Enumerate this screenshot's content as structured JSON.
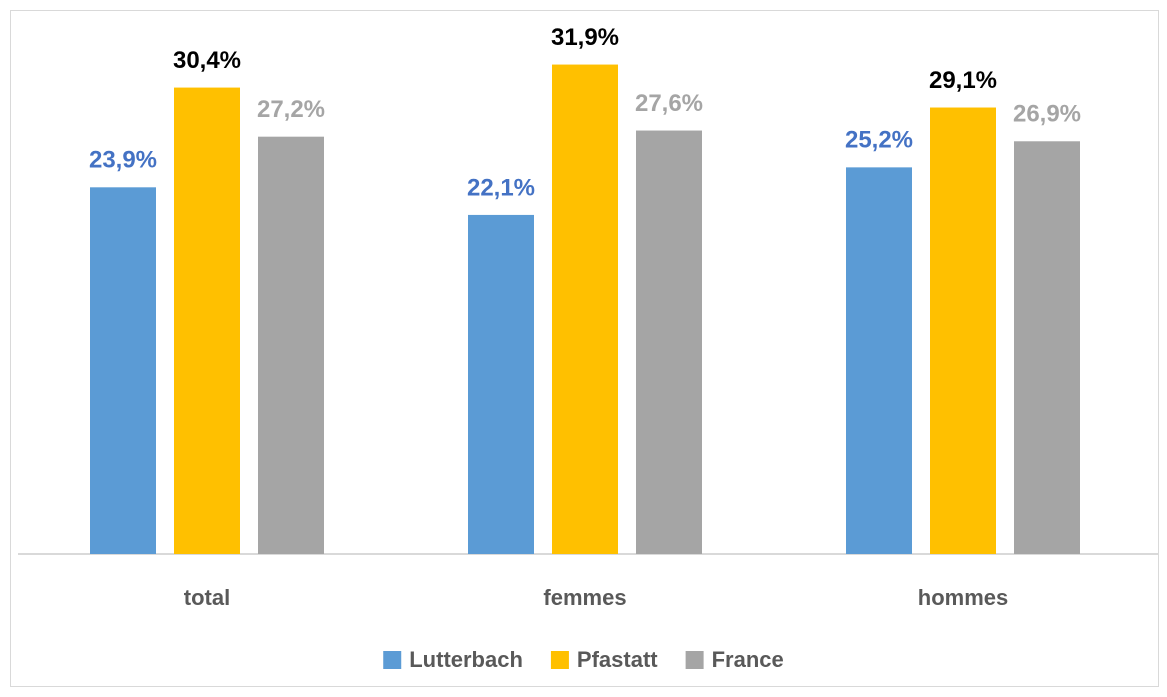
{
  "chart_data": {
    "type": "bar",
    "categories": [
      "total",
      "femmes",
      "hommes"
    ],
    "series": [
      {
        "name": "Lutterbach",
        "color": "#5b9bd5",
        "label_color": "#4472c4",
        "values": [
          23.9,
          22.1,
          25.2
        ],
        "value_labels": [
          "23,9%",
          "22,1%",
          "25,2%"
        ]
      },
      {
        "name": "Pfastatt",
        "color": "#ffc000",
        "label_color": "#000000",
        "values": [
          30.4,
          31.9,
          29.1
        ],
        "value_labels": [
          "30,4%",
          "31,9%",
          "29,1%"
        ]
      },
      {
        "name": "France",
        "color": "#a5a5a5",
        "label_color": "#a5a5a5",
        "values": [
          27.2,
          27.6,
          26.9
        ],
        "value_labels": [
          "27,2%",
          "27,6%",
          "26,9%"
        ]
      }
    ],
    "ylim": [
      0,
      35
    ],
    "legend": "bottom"
  }
}
